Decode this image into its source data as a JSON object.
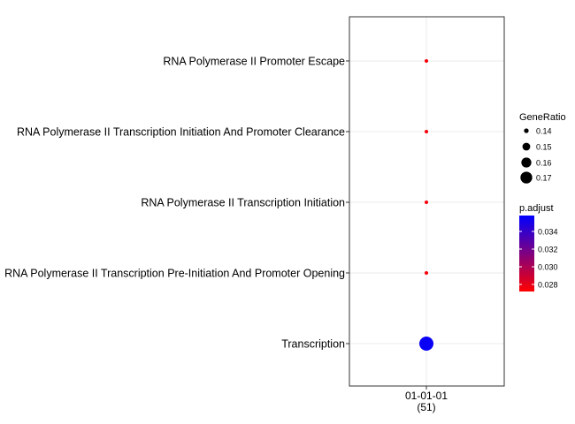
{
  "chart_data": {
    "type": "scatter",
    "x_categories": [
      {
        "id": "01-01-01",
        "count": "(51)"
      }
    ],
    "y_categories": [
      "RNA Polymerase II Promoter Escape",
      "RNA Polymerase II Transcription Initiation And Promoter Clearance",
      "RNA Polymerase II Transcription Initiation",
      "RNA Polymerase II Transcription Pre-Initiation And Promoter Opening",
      "Transcription"
    ],
    "points": [
      {
        "x": "01-01-01",
        "y": "RNA Polymerase II Promoter Escape",
        "GeneRatio": 0.137,
        "p_adjust": 0.0275
      },
      {
        "x": "01-01-01",
        "y": "RNA Polymerase II Transcription Initiation And Promoter Clearance",
        "GeneRatio": 0.137,
        "p_adjust": 0.0275
      },
      {
        "x": "01-01-01",
        "y": "RNA Polymerase II Transcription Initiation",
        "GeneRatio": 0.137,
        "p_adjust": 0.0275
      },
      {
        "x": "01-01-01",
        "y": "RNA Polymerase II Transcription Pre-Initiation And Promoter Opening",
        "GeneRatio": 0.137,
        "p_adjust": 0.0275
      },
      {
        "x": "01-01-01",
        "y": "Transcription",
        "GeneRatio": 0.176,
        "p_adjust": 0.0355
      }
    ],
    "size_legend": {
      "title": "GeneRatio",
      "entries": [
        {
          "label": "0.14",
          "value": 0.14
        },
        {
          "label": "0.15",
          "value": 0.15
        },
        {
          "label": "0.16",
          "value": 0.16
        },
        {
          "label": "0.17",
          "value": 0.17
        }
      ]
    },
    "color_legend": {
      "title": "p.adjust",
      "range": [
        0.0272,
        0.0358
      ],
      "low_color": "#ff0000",
      "high_color": "#0000ff",
      "ticks": [
        {
          "label": "0.034",
          "value": 0.034
        },
        {
          "label": "0.032",
          "value": 0.032
        },
        {
          "label": "0.030",
          "value": 0.03
        },
        {
          "label": "0.028",
          "value": 0.028
        }
      ]
    },
    "grid": true,
    "legend_position": "right"
  }
}
